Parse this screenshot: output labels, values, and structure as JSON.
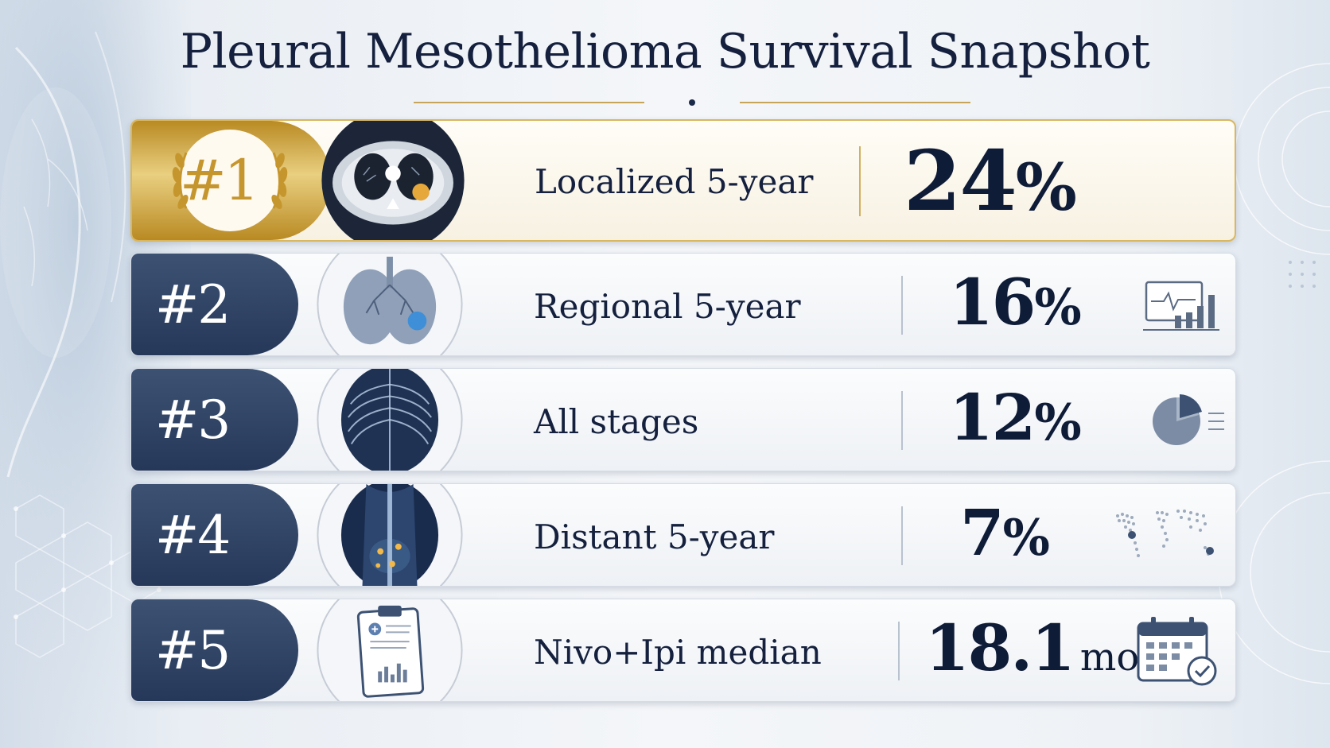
{
  "title": "Pleural Mesothelioma Survival Snapshot",
  "colors": {
    "navy": "#14203d",
    "gold": "#c6962e",
    "tab_navy": "#2f4466",
    "accent_blue": "#3e8fd8"
  },
  "rows": [
    {
      "rank": "#1",
      "label": "Localized 5-year",
      "value": "24",
      "unit": "%",
      "thumb_icon": "ct-scan-icon",
      "trailing_icon": ""
    },
    {
      "rank": "#2",
      "label": "Regional 5-year",
      "value": "16",
      "unit": "%",
      "thumb_icon": "lungs-icon",
      "trailing_icon": "monitor-chart-icon"
    },
    {
      "rank": "#3",
      "label": "All stages",
      "value": "12",
      "unit": "%",
      "thumb_icon": "chest-xray-icon",
      "trailing_icon": "pie-chart-icon"
    },
    {
      "rank": "#4",
      "label": "Distant 5-year",
      "value": "7",
      "unit": "%",
      "thumb_icon": "body-xray-icon",
      "trailing_icon": "world-map-icon"
    },
    {
      "rank": "#5",
      "label": "Nivo+Ipi median",
      "value": "18.1",
      "unit": "mo",
      "thumb_icon": "clipboard-report-icon",
      "trailing_icon": "calendar-check-icon"
    }
  ]
}
